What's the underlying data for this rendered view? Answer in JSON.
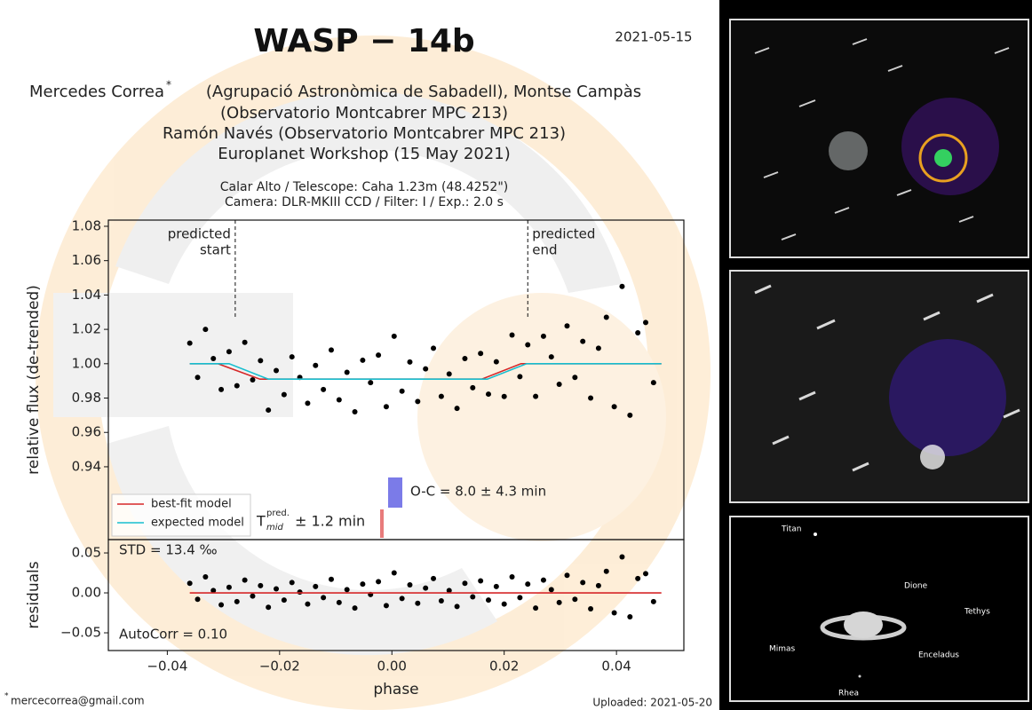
{
  "header": {
    "title": "WASP − 14b",
    "date": "2021-05-15",
    "author_lines": [
      "Mercedes Correa",
      "(Agrupació Astronòmica de Sabadell), Montse Campàs",
      "(Observatorio Montcabrer MPC 213)",
      "Ramón Navés (Observatorio Montcabrer MPC 213)",
      "Europlanet Workshop (15 May 2021)"
    ],
    "author_mark": "*",
    "observatory_lines": [
      "Calar Alto / Telescope: Caha 1.23m (48.4252\")",
      "Camera: DLR-MKIII CCD / Filter: I / Exp.: 2.0 s"
    ]
  },
  "footer": {
    "email_mark": "*",
    "email": "mercecorrea@gmail.com",
    "uploaded": "Uploaded: 2021-05-20"
  },
  "images": {
    "saturn_labels": [
      "Titan",
      "Dione",
      "Tethys",
      "Mimas",
      "Enceladus",
      "Rhea"
    ]
  },
  "chart_data": [
    {
      "type": "scatter",
      "ylabel": "relative flux (de-trended)",
      "color": "#000000",
      "xlim": [
        -0.0505,
        0.052
      ],
      "ylim": [
        0.8976,
        1.0836
      ],
      "yticks": [
        0.94,
        0.96,
        0.98,
        {
          "value": 1.0,
          "label": "1.00"
        },
        1.02,
        1.04,
        1.06,
        1.08
      ],
      "x": [
        -0.036,
        -0.0346,
        -0.0332,
        -0.0318,
        -0.0304,
        -0.029,
        -0.0276,
        -0.0262,
        -0.0248,
        -0.0234,
        -0.022,
        -0.0206,
        -0.0192,
        -0.0178,
        -0.0164,
        -0.015,
        -0.0136,
        -0.0122,
        -0.0108,
        -0.0094,
        -0.008,
        -0.0066,
        -0.0052,
        -0.0038,
        -0.0024,
        -0.001,
        0.0004,
        0.0018,
        0.0032,
        0.0046,
        0.006,
        0.0074,
        0.0088,
        0.0102,
        0.0116,
        0.013,
        0.0144,
        0.0158,
        0.0172,
        0.0186,
        0.02,
        0.0214,
        0.0228,
        0.0242,
        0.0256,
        0.027,
        0.0284,
        0.0298,
        0.0312,
        0.0326,
        0.034,
        0.0354,
        0.0368,
        0.0382,
        0.0396,
        0.041,
        0.0424,
        0.0438,
        0.0452,
        0.0466
      ],
      "values": [
        1.012,
        0.992,
        1.02,
        1.003,
        0.985,
        1.007,
        0.9872,
        1.0124,
        0.9906,
        1.0018,
        0.973,
        0.996,
        0.982,
        1.004,
        0.992,
        0.977,
        0.999,
        0.985,
        1.008,
        0.979,
        0.995,
        0.972,
        1.002,
        0.989,
        1.005,
        0.975,
        1.016,
        0.984,
        1.001,
        0.978,
        0.997,
        1.009,
        0.981,
        0.994,
        0.974,
        1.003,
        0.986,
        1.006,
        0.9823,
        1.0011,
        0.9809,
        1.0167,
        0.9925,
        1.011,
        0.981,
        1.016,
        1.004,
        0.988,
        1.022,
        0.992,
        1.013,
        0.98,
        1.009,
        1.027,
        0.975,
        1.045,
        0.97,
        1.018,
        1.024,
        0.989
      ],
      "series": [
        {
          "name": "best-fit model",
          "color": "#d62728",
          "x": [
            -0.036,
            -0.031,
            -0.0235,
            0.016,
            0.023,
            0.048
          ],
          "values": [
            1.0,
            1.0,
            0.991,
            0.991,
            1.0,
            1.0
          ]
        },
        {
          "name": "expected model",
          "color": "#17becf",
          "x": [
            -0.036,
            -0.029,
            -0.022,
            0.017,
            0.024,
            0.048
          ],
          "values": [
            1.0,
            1.0,
            0.991,
            0.991,
            1.0,
            1.0
          ]
        }
      ],
      "vlines": [
        {
          "x": -0.0279,
          "label": [
            "predicted",
            "start"
          ]
        },
        {
          "x": 0.0242,
          "label": [
            "predicted",
            "end"
          ]
        }
      ],
      "oc_text": "O-C = 8.0 ± 4.3 min",
      "tmid": {
        "symbol": "T",
        "sub": "mid",
        "sup": "pred.",
        "text": "± 1.2 min"
      }
    },
    {
      "type": "scatter",
      "ylabel": "residuals",
      "xlabel": "phase",
      "color": "#000000",
      "xlim": [
        -0.0505,
        0.052
      ],
      "ylim": [
        -0.0722,
        0.0667
      ],
      "xticks": [
        {
          "value": -0.04,
          "label": "−0.04"
        },
        {
          "value": -0.02,
          "label": "−0.02"
        },
        {
          "value": 0,
          "label": "0.00"
        },
        {
          "value": 0.02,
          "label": "0.02"
        },
        {
          "value": 0.04,
          "label": "0.04"
        }
      ],
      "yticks": [
        {
          "value": -0.05,
          "label": "−0.05"
        },
        {
          "value": 0,
          "label": "0.00"
        },
        {
          "value": 0.05,
          "label": "0.05"
        }
      ],
      "x": [
        -0.036,
        -0.0346,
        -0.0332,
        -0.0318,
        -0.0304,
        -0.029,
        -0.0276,
        -0.0262,
        -0.0248,
        -0.0234,
        -0.022,
        -0.0206,
        -0.0192,
        -0.0178,
        -0.0164,
        -0.015,
        -0.0136,
        -0.0122,
        -0.0108,
        -0.0094,
        -0.008,
        -0.0066,
        -0.0052,
        -0.0038,
        -0.0024,
        -0.001,
        0.0004,
        0.0018,
        0.0032,
        0.0046,
        0.006,
        0.0074,
        0.0088,
        0.0102,
        0.0116,
        0.013,
        0.0144,
        0.0158,
        0.0172,
        0.0186,
        0.02,
        0.0214,
        0.0228,
        0.0242,
        0.0256,
        0.027,
        0.0284,
        0.0298,
        0.0312,
        0.0326,
        0.034,
        0.0354,
        0.0368,
        0.0382,
        0.0396,
        0.041,
        0.0424,
        0.0438,
        0.0452,
        0.0466
      ],
      "values": [
        0.012,
        -0.008,
        0.02,
        0.003,
        -0.015,
        0.007,
        -0.011,
        0.016,
        -0.004,
        0.009,
        -0.018,
        0.005,
        -0.009,
        0.013,
        0.001,
        -0.014,
        0.008,
        -0.006,
        0.017,
        -0.012,
        0.004,
        -0.019,
        0.011,
        -0.002,
        0.014,
        -0.016,
        0.025,
        -0.007,
        0.01,
        -0.013,
        0.006,
        0.018,
        -0.01,
        0.003,
        -0.017,
        0.012,
        -0.005,
        0.015,
        -0.009,
        0.008,
        -0.014,
        0.02,
        -0.006,
        0.011,
        -0.019,
        0.016,
        0.004,
        -0.012,
        0.022,
        -0.008,
        0.013,
        -0.02,
        0.009,
        0.027,
        -0.025,
        0.045,
        -0.03,
        0.018,
        0.024,
        -0.011
      ],
      "zero_line": {
        "color": "#d62728",
        "x": [
          -0.036,
          0.048
        ],
        "values": [
          0,
          0
        ]
      },
      "std_text": "STD = 13.4 ‰",
      "autocorr_text": "AutoCorr = 0.10"
    }
  ]
}
